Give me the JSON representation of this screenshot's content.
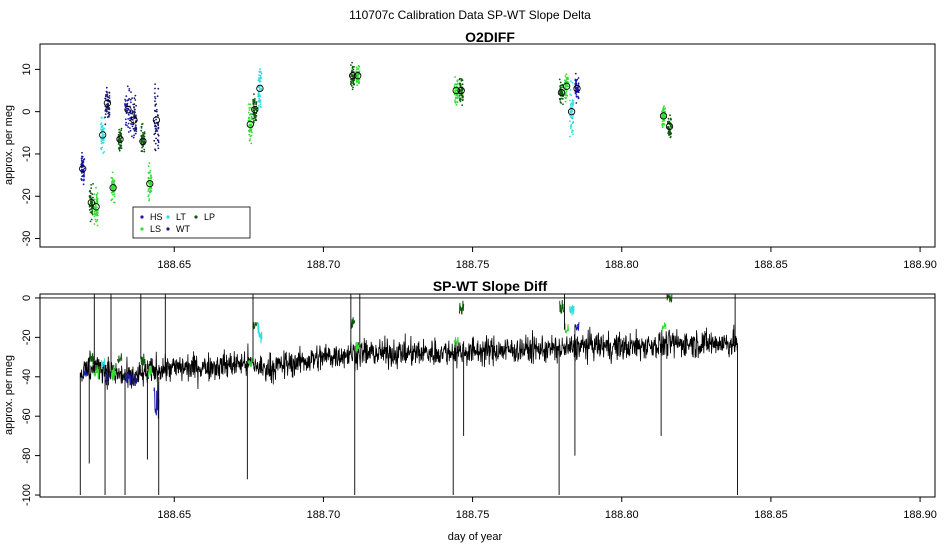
{
  "figure_title": "110707c  Calibration Data SP-WT Slope Delta",
  "colors": {
    "HS": "#1a1aaa",
    "LS": "#33dd33",
    "LT": "#33dddd",
    "WT": "#1a1a6e",
    "LP": "#0e5a0e",
    "trace": "#000000"
  },
  "chart_data": [
    {
      "type": "scatter",
      "title": "O2DIFF",
      "xlabel": "",
      "ylabel": "approx. per meg",
      "xlim": [
        188.605,
        188.905
      ],
      "ylim": [
        -32,
        16
      ],
      "xticks": [
        188.65,
        188.7,
        188.75,
        188.8,
        188.85,
        188.9
      ],
      "xtick_labels": [
        "188.65",
        "188.70",
        "188.75",
        "188.80",
        "188.85",
        "188.90"
      ],
      "yticks": [
        -30,
        -20,
        -10,
        0,
        10
      ],
      "ytick_labels": [
        "-30",
        "-20",
        "-10",
        "0",
        "10"
      ],
      "legend": {
        "placement": "lower-left",
        "entries": [
          {
            "label": "HS",
            "code": "HS"
          },
          {
            "label": "LS",
            "code": "LS"
          },
          {
            "label": "LT",
            "code": "LT"
          },
          {
            "label": "WT",
            "code": "WT"
          },
          {
            "label": "LP",
            "code": "LP"
          }
        ]
      },
      "clusters": [
        {
          "series": "HS",
          "x": 188.6193,
          "y": -13.5,
          "xspread": 0.0006,
          "yspread": 3.0
        },
        {
          "series": "LP",
          "x": 188.6222,
          "y": -21.5,
          "xspread": 0.0006,
          "yspread": 3.5
        },
        {
          "series": "LS",
          "x": 188.6238,
          "y": -22.5,
          "xspread": 0.0006,
          "yspread": 3.5
        },
        {
          "series": "LT",
          "x": 188.626,
          "y": -5.5,
          "xspread": 0.0006,
          "yspread": 3.5
        },
        {
          "series": "WT",
          "x": 188.6276,
          "y": 2.0,
          "xspread": 0.0008,
          "yspread": 4.0
        },
        {
          "series": "LS",
          "x": 188.6295,
          "y": -18.0,
          "xspread": 0.0006,
          "yspread": 2.5
        },
        {
          "series": "LP",
          "x": 188.6318,
          "y": -6.5,
          "xspread": 0.0006,
          "yspread": 2.5
        },
        {
          "series": "HS",
          "x": 188.6345,
          "y": 0.5,
          "xspread": 0.001,
          "yspread": 4.5
        },
        {
          "series": "WT",
          "x": 188.6365,
          "y": -2.0,
          "xspread": 0.0008,
          "yspread": 4.5
        },
        {
          "series": "LP",
          "x": 188.6395,
          "y": -7.0,
          "xspread": 0.0006,
          "yspread": 3.0
        },
        {
          "series": "LS",
          "x": 188.6418,
          "y": -17.0,
          "xspread": 0.0006,
          "yspread": 3.5
        },
        {
          "series": "WT",
          "x": 188.644,
          "y": -2.0,
          "xspread": 0.0008,
          "yspread": 7.0
        },
        {
          "series": "LS",
          "x": 188.6755,
          "y": -3.0,
          "xspread": 0.0006,
          "yspread": 3.5
        },
        {
          "series": "LP",
          "x": 188.677,
          "y": 0.5,
          "xspread": 0.0006,
          "yspread": 3.0
        },
        {
          "series": "LT",
          "x": 188.6787,
          "y": 5.5,
          "xspread": 0.0006,
          "yspread": 4.0
        },
        {
          "series": "LP",
          "x": 188.7098,
          "y": 8.5,
          "xspread": 0.0006,
          "yspread": 2.5
        },
        {
          "series": "LS",
          "x": 188.7115,
          "y": 8.5,
          "xspread": 0.0006,
          "yspread": 2.5
        },
        {
          "series": "LS",
          "x": 188.7445,
          "y": 5.0,
          "xspread": 0.0006,
          "yspread": 3.0
        },
        {
          "series": "LP",
          "x": 188.7462,
          "y": 5.0,
          "xspread": 0.0006,
          "yspread": 3.0
        },
        {
          "series": "LP",
          "x": 188.7798,
          "y": 4.5,
          "xspread": 0.0006,
          "yspread": 2.5
        },
        {
          "series": "LS",
          "x": 188.7815,
          "y": 6.0,
          "xspread": 0.0006,
          "yspread": 2.5
        },
        {
          "series": "LT",
          "x": 188.7832,
          "y": 0.0,
          "xspread": 0.0006,
          "yspread": 4.5
        },
        {
          "series": "HS",
          "x": 188.785,
          "y": 5.5,
          "xspread": 0.0006,
          "yspread": 2.5
        },
        {
          "series": "LS",
          "x": 188.814,
          "y": -1.0,
          "xspread": 0.0006,
          "yspread": 2.0
        },
        {
          "series": "LP",
          "x": 188.816,
          "y": -3.5,
          "xspread": 0.0006,
          "yspread": 2.0
        }
      ]
    },
    {
      "type": "line",
      "title": "SP-WT Slope Diff",
      "xlabel": "day of year",
      "ylabel": "approx. per meg",
      "xlim": [
        188.605,
        188.905
      ],
      "ylim": [
        -101,
        2
      ],
      "xticks": [
        188.65,
        188.7,
        188.75,
        188.8,
        188.85,
        188.9
      ],
      "xtick_labels": [
        "188.65",
        "188.70",
        "188.75",
        "188.80",
        "188.85",
        "188.90"
      ],
      "yticks": [
        -100,
        -80,
        -60,
        -40,
        -20,
        0
      ],
      "ytick_labels": [
        "-100",
        "-80",
        "-60",
        "-40",
        "-20",
        "0"
      ],
      "hline": 0,
      "segments": [
        {
          "series": "trace",
          "x0": 188.6185,
          "x1": 188.8388,
          "points": [
            [
              188.6185,
              -38
            ],
            [
              188.625,
              -35
            ],
            [
              188.635,
              -41
            ],
            [
              188.645,
              -36
            ],
            [
              188.66,
              -35
            ],
            [
              188.675,
              -33
            ],
            [
              188.68,
              -36
            ],
            [
              188.69,
              -33
            ],
            [
              188.7,
              -30
            ],
            [
              188.71,
              -28
            ],
            [
              188.73,
              -28
            ],
            [
              188.75,
              -27
            ],
            [
              188.77,
              -26
            ],
            [
              188.78,
              -26
            ],
            [
              188.79,
              -24
            ],
            [
              188.8,
              -25
            ],
            [
              188.81,
              -24
            ],
            [
              188.82,
              -23
            ],
            [
              188.8388,
              -23
            ]
          ],
          "noise": 3.5
        },
        {
          "series": "HS",
          "x0": 188.6195,
          "x1": 188.621,
          "level": -39,
          "noise": 2.0
        },
        {
          "series": "LP",
          "x0": 188.6215,
          "x1": 188.623,
          "level": -30,
          "noise": 2.0
        },
        {
          "series": "LS",
          "x0": 188.6232,
          "x1": 188.6248,
          "level": -38,
          "noise": 2.0
        },
        {
          "series": "LT",
          "x0": 188.6255,
          "x1": 188.6268,
          "level": -34,
          "noise": 2.0
        },
        {
          "series": "WT",
          "x0": 188.627,
          "x1": 188.6285,
          "level": -40,
          "noise": 2.0
        },
        {
          "series": "LS",
          "x0": 188.6288,
          "x1": 188.6305,
          "level": -38,
          "noise": 2.0
        },
        {
          "series": "LP",
          "x0": 188.631,
          "x1": 188.6325,
          "level": -30,
          "noise": 2.0
        },
        {
          "series": "HS",
          "x0": 188.6335,
          "x1": 188.6355,
          "level": -41,
          "noise": 2.0
        },
        {
          "series": "WT",
          "x0": 188.6358,
          "x1": 188.6378,
          "level": -42,
          "noise": 2.0
        },
        {
          "series": "LP",
          "x0": 188.6388,
          "x1": 188.6402,
          "level": -31,
          "noise": 2.0
        },
        {
          "series": "LS",
          "x0": 188.641,
          "x1": 188.6425,
          "level": -37,
          "noise": 2.0
        },
        {
          "series": "HS",
          "x0": 188.6432,
          "x1": 188.6448,
          "level": -55,
          "noise": 6.0
        },
        {
          "series": "LS",
          "x0": 188.6748,
          "x1": 188.6762,
          "level": -33,
          "noise": 1.5
        },
        {
          "series": "LP",
          "x0": 188.6764,
          "x1": 188.6778,
          "level": -14,
          "noise": 1.5
        },
        {
          "series": "LT",
          "x0": 188.678,
          "x1": 188.6794,
          "level": -18,
          "noise": 3.0
        },
        {
          "series": "LP",
          "x0": 188.7092,
          "x1": 188.7105,
          "level": -12,
          "noise": 1.5
        },
        {
          "series": "LS",
          "x0": 188.7108,
          "x1": 188.7122,
          "level": -25,
          "noise": 1.5
        },
        {
          "series": "LS",
          "x0": 188.7438,
          "x1": 188.7452,
          "level": -22,
          "noise": 1.5
        },
        {
          "series": "LP",
          "x0": 188.7455,
          "x1": 188.747,
          "level": -5,
          "noise": 2.0
        },
        {
          "series": "LP",
          "x0": 188.7792,
          "x1": 188.7805,
          "level": -5,
          "noise": 2.0
        },
        {
          "series": "LS",
          "x0": 188.7808,
          "x1": 188.7822,
          "level": -16,
          "noise": 1.5
        },
        {
          "series": "LT",
          "x0": 188.7825,
          "x1": 188.784,
          "level": -6,
          "noise": 2.0
        },
        {
          "series": "HS",
          "x0": 188.7843,
          "x1": 188.7857,
          "level": -14,
          "noise": 1.5
        },
        {
          "series": "LS",
          "x0": 188.8135,
          "x1": 188.8148,
          "level": -14,
          "noise": 1.5
        },
        {
          "series": "LP",
          "x0": 188.8152,
          "x1": 188.8168,
          "level": 0,
          "noise": 1.5
        }
      ],
      "spikes": [
        {
          "x": 188.6185,
          "y0": -38,
          "y1": -100
        },
        {
          "x": 188.6215,
          "y0": -30,
          "y1": -84
        },
        {
          "x": 188.6232,
          "y0": -38,
          "y1": 2
        },
        {
          "x": 188.6268,
          "y0": -34,
          "y1": -100
        },
        {
          "x": 188.6288,
          "y0": -38,
          "y1": 2
        },
        {
          "x": 188.6335,
          "y0": -41,
          "y1": -100
        },
        {
          "x": 188.6388,
          "y0": -31,
          "y1": 2
        },
        {
          "x": 188.641,
          "y0": -37,
          "y1": -82
        },
        {
          "x": 188.6448,
          "y0": -40,
          "y1": -100
        },
        {
          "x": 188.647,
          "y0": -36,
          "y1": 2
        },
        {
          "x": 188.6745,
          "y0": -33,
          "y1": -92
        },
        {
          "x": 188.6764,
          "y0": -33,
          "y1": 2
        },
        {
          "x": 188.7092,
          "y0": -28,
          "y1": 2
        },
        {
          "x": 188.7105,
          "y0": -28,
          "y1": -100
        },
        {
          "x": 188.7122,
          "y0": -25,
          "y1": 2
        },
        {
          "x": 188.7435,
          "y0": -27,
          "y1": -100
        },
        {
          "x": 188.747,
          "y0": -22,
          "y1": -70
        },
        {
          "x": 188.779,
          "y0": -26,
          "y1": -100
        },
        {
          "x": 188.7808,
          "y0": -16,
          "y1": 2
        },
        {
          "x": 188.7843,
          "y0": -14,
          "y1": -80
        },
        {
          "x": 188.8132,
          "y0": -25,
          "y1": -70
        },
        {
          "x": 188.8152,
          "y0": 0,
          "y1": 2
        },
        {
          "x": 188.838,
          "y0": -23,
          "y1": 2
        },
        {
          "x": 188.8388,
          "y0": -23,
          "y1": -100
        }
      ]
    }
  ]
}
